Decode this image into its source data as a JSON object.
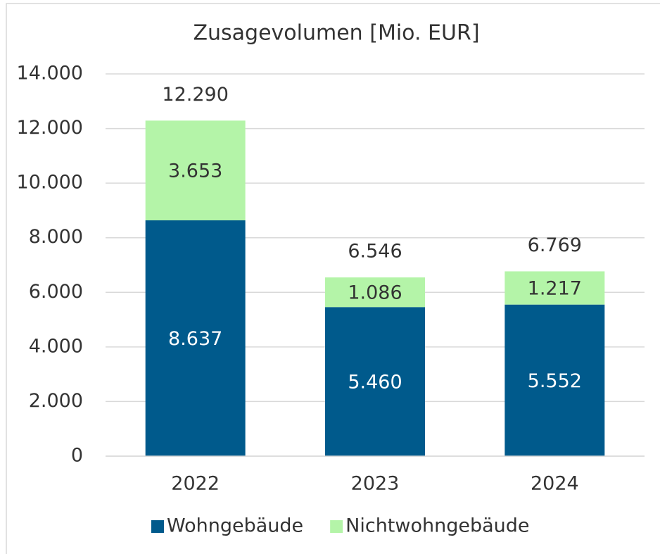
{
  "chart_data": {
    "type": "stacked_bar",
    "title": "Zusagevolumen [Mio. EUR]",
    "categories": [
      "2022",
      "2023",
      "2024"
    ],
    "series": [
      {
        "name": "Wohngebäude",
        "color": "#005a8c",
        "values": [
          8637,
          5460,
          5552
        ],
        "value_labels": [
          "8.637",
          "5.460",
          "5.552"
        ]
      },
      {
        "name": "Nichtwohngebäude",
        "color": "#b4f4a8",
        "values": [
          3653,
          1086,
          1217
        ],
        "value_labels": [
          "3.653",
          "1.086",
          "1.217"
        ]
      }
    ],
    "totals": {
      "values": [
        12290,
        6546,
        6769
      ],
      "value_labels": [
        "12.290",
        "6.546",
        "6.769"
      ]
    },
    "ylim": [
      0,
      14000
    ],
    "yticks": [
      0,
      {
        "value": 2000,
        "label": "2.000"
      },
      {
        "value": 4000,
        "label": "4.000"
      },
      {
        "value": 6000,
        "label": "6.000"
      },
      {
        "value": 8000,
        "label": "8.000"
      },
      {
        "value": 10000,
        "label": "10.000"
      },
      {
        "value": 12000,
        "label": "12.000"
      },
      {
        "value": 14000,
        "label": "14.000"
      }
    ],
    "grid": true,
    "legend": "bottom"
  }
}
